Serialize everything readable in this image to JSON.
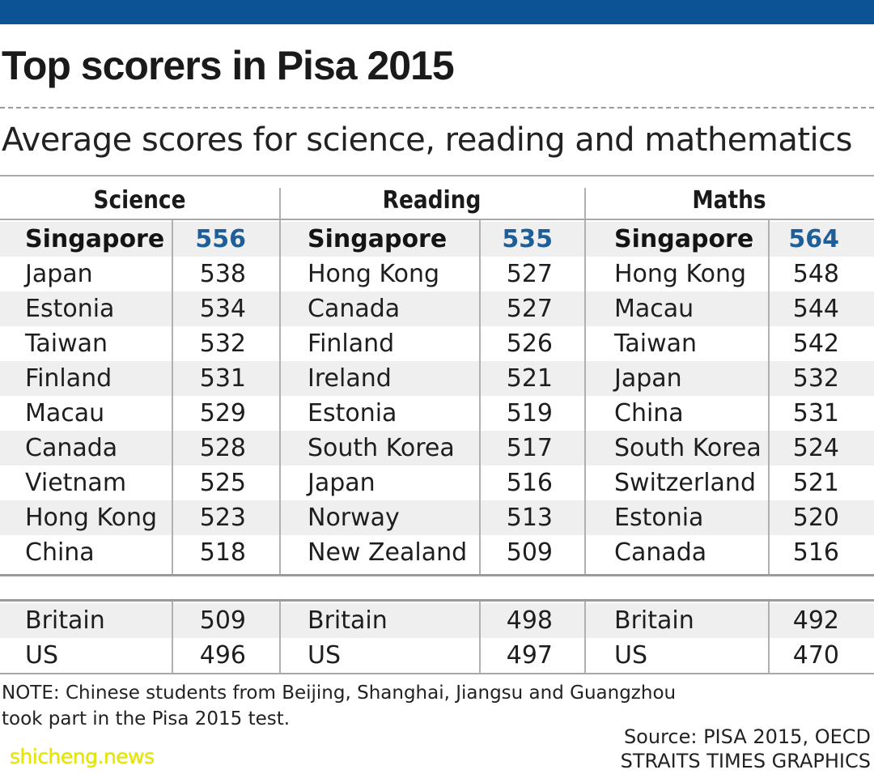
{
  "header": {
    "title": "Top scorers in Pisa 2015",
    "subtitle": "Average scores for science, reading and mathematics"
  },
  "colors": {
    "top_bar": "#0b5394",
    "leader_score": "#1f5f99",
    "row_band": "#efefef",
    "watermark": "#e6e600"
  },
  "chart_data": {
    "type": "table",
    "title": "Top scorers in Pisa 2015",
    "subtitle": "Average scores for science, reading and mathematics",
    "columns": [
      {
        "subject": "Science",
        "top": [
          {
            "country": "Singapore",
            "score": 556
          },
          {
            "country": "Japan",
            "score": 538
          },
          {
            "country": "Estonia",
            "score": 534
          },
          {
            "country": "Taiwan",
            "score": 532
          },
          {
            "country": "Finland",
            "score": 531
          },
          {
            "country": "Macau",
            "score": 529
          },
          {
            "country": "Canada",
            "score": 528
          },
          {
            "country": "Vietnam",
            "score": 525
          },
          {
            "country": "Hong Kong",
            "score": 523
          },
          {
            "country": "China",
            "score": 518
          }
        ],
        "comparison": [
          {
            "country": "Britain",
            "score": 509
          },
          {
            "country": "US",
            "score": 496
          }
        ]
      },
      {
        "subject": "Reading",
        "top": [
          {
            "country": "Singapore",
            "score": 535
          },
          {
            "country": "Hong Kong",
            "score": 527
          },
          {
            "country": "Canada",
            "score": 527
          },
          {
            "country": "Finland",
            "score": 526
          },
          {
            "country": "Ireland",
            "score": 521
          },
          {
            "country": "Estonia",
            "score": 519
          },
          {
            "country": "South Korea",
            "score": 517
          },
          {
            "country": "Japan",
            "score": 516
          },
          {
            "country": "Norway",
            "score": 513
          },
          {
            "country": "New Zealand",
            "score": 509
          }
        ],
        "comparison": [
          {
            "country": "Britain",
            "score": 498
          },
          {
            "country": "US",
            "score": 497
          }
        ]
      },
      {
        "subject": "Maths",
        "top": [
          {
            "country": "Singapore",
            "score": 564
          },
          {
            "country": "Hong Kong",
            "score": 548
          },
          {
            "country": "Macau",
            "score": 544
          },
          {
            "country": "Taiwan",
            "score": 542
          },
          {
            "country": "Japan",
            "score": 532
          },
          {
            "country": "China",
            "score": 531
          },
          {
            "country": "South Korea",
            "score": 524
          },
          {
            "country": "Switzerland",
            "score": 521
          },
          {
            "country": "Estonia",
            "score": 520
          },
          {
            "country": "Canada",
            "score": 516
          }
        ],
        "comparison": [
          {
            "country": "Britain",
            "score": 492
          },
          {
            "country": "US",
            "score": 470
          }
        ]
      }
    ]
  },
  "footer": {
    "note": "NOTE: Chinese students from Beijing, Shanghai, Jiangsu and Guangzhou took part in the Pisa 2015 test.",
    "source": "Source: PISA 2015, OECD",
    "credit": "STRAITS TIMES GRAPHICS",
    "watermark": "shicheng.news"
  }
}
